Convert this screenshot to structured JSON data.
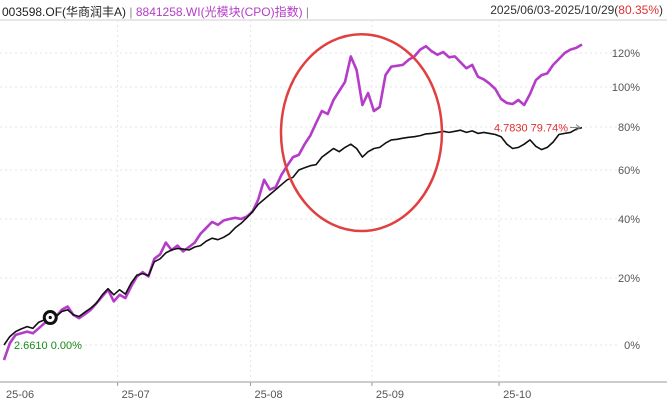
{
  "header": {
    "fund_code_name": "003598.OF(华商润丰A)",
    "separator": "|",
    "index_code_name": "8841258.WI(光模块(CPO)指数)",
    "date_range": "2025/06/03-2025/10/29(",
    "range_return": "80.35%",
    "range_close": ")"
  },
  "annotations": {
    "start_text": "2.6610 0.00%",
    "end_text": "4.7830 79.74%"
  },
  "colors": {
    "fund_line": "#111111",
    "index_line": "#b43cc8",
    "start_label": "#1a8a1a",
    "end_label": "#e03030",
    "circle_mark": "#e04040"
  },
  "chart_data": {
    "type": "line",
    "title": "",
    "xlabel": "",
    "ylabel": "",
    "scale": "log",
    "ylim": [
      -6,
      130
    ],
    "x_ticks": [
      "25-06",
      "25-07",
      "25-08",
      "25-09",
      "25-10"
    ],
    "y_ticks": [
      0,
      20,
      40,
      60,
      80,
      100,
      120
    ],
    "y_tick_labels": [
      "0%",
      "20%",
      "40%",
      "60%",
      "80%",
      "100%",
      "120%"
    ],
    "x": [
      "2025-06-03",
      "2025-06-04",
      "2025-06-05",
      "2025-06-06",
      "2025-06-09",
      "2025-06-10",
      "2025-06-11",
      "2025-06-12",
      "2025-06-13",
      "2025-06-16",
      "2025-06-17",
      "2025-06-18",
      "2025-06-19",
      "2025-06-20",
      "2025-06-23",
      "2025-06-24",
      "2025-06-25",
      "2025-06-26",
      "2025-06-27",
      "2025-06-30",
      "2025-07-01",
      "2025-07-02",
      "2025-07-03",
      "2025-07-04",
      "2025-07-07",
      "2025-07-08",
      "2025-07-09",
      "2025-07-10",
      "2025-07-11",
      "2025-07-14",
      "2025-07-15",
      "2025-07-16",
      "2025-07-17",
      "2025-07-18",
      "2025-07-21",
      "2025-07-22",
      "2025-07-23",
      "2025-07-24",
      "2025-07-25",
      "2025-07-28",
      "2025-07-29",
      "2025-07-30",
      "2025-07-31",
      "2025-08-01",
      "2025-08-04",
      "2025-08-05",
      "2025-08-06",
      "2025-08-07",
      "2025-08-08",
      "2025-08-11",
      "2025-08-12",
      "2025-08-13",
      "2025-08-14",
      "2025-08-15",
      "2025-08-18",
      "2025-08-19",
      "2025-08-20",
      "2025-08-21",
      "2025-08-22",
      "2025-08-25",
      "2025-08-26",
      "2025-08-27",
      "2025-08-28",
      "2025-08-29",
      "2025-09-01",
      "2025-09-02",
      "2025-09-03",
      "2025-09-04",
      "2025-09-05",
      "2025-09-08",
      "2025-09-09",
      "2025-09-10",
      "2025-09-11",
      "2025-09-12",
      "2025-09-15",
      "2025-09-16",
      "2025-09-17",
      "2025-09-18",
      "2025-09-19",
      "2025-09-22",
      "2025-09-23",
      "2025-09-24",
      "2025-09-25",
      "2025-09-26",
      "2025-09-29",
      "2025-09-30",
      "2025-10-09",
      "2025-10-10",
      "2025-10-13",
      "2025-10-14",
      "2025-10-15",
      "2025-10-16",
      "2025-10-17",
      "2025-10-20",
      "2025-10-21",
      "2025-10-22",
      "2025-10-23",
      "2025-10-24",
      "2025-10-27",
      "2025-10-28",
      "2025-10-29"
    ],
    "series": [
      {
        "role": "fund",
        "values": [
          0.0,
          2.5,
          4.0,
          4.8,
          5.5,
          5.0,
          6.8,
          7.5,
          8.2,
          8.5,
          10.0,
          10.5,
          9.0,
          8.5,
          9.8,
          11.0,
          12.5,
          15.0,
          16.8,
          15.0,
          16.5,
          15.2,
          18.5,
          21.0,
          21.5,
          20.8,
          25.5,
          26.5,
          28.5,
          29.5,
          30.0,
          29.8,
          29.5,
          30.5,
          31.0,
          32.5,
          33.5,
          33.0,
          33.8,
          35.0,
          37.0,
          38.5,
          40.5,
          43.0,
          46.0,
          48.0,
          50.0,
          52.0,
          54.0,
          56.0,
          57.0,
          60.0,
          61.0,
          62.0,
          62.5,
          66.0,
          68.0,
          70.0,
          68.5,
          70.5,
          72.0,
          70.0,
          66.0,
          68.5,
          70.0,
          70.5,
          72.5,
          74.0,
          74.3,
          74.8,
          75.2,
          75.5,
          76.0,
          76.8,
          77.0,
          77.5,
          78.0,
          77.5,
          78.0,
          78.5,
          77.5,
          78.2,
          77.0,
          77.5,
          77.0,
          76.5,
          75.5,
          72.0,
          70.0,
          70.5,
          72.0,
          74.0,
          71.0,
          69.5,
          70.5,
          73.0,
          76.5,
          77.0,
          77.5,
          79.0,
          79.74
        ]
      },
      {
        "role": "index",
        "values": [
          -4.5,
          0.5,
          3.0,
          3.5,
          4.0,
          3.5,
          5.0,
          6.5,
          7.5,
          8.5,
          10.5,
          11.5,
          9.0,
          8.0,
          9.2,
          10.5,
          12.5,
          14.5,
          16.5,
          13.0,
          15.0,
          14.0,
          17.5,
          20.5,
          22.0,
          20.5,
          26.5,
          28.0,
          32.0,
          29.5,
          31.0,
          29.0,
          30.5,
          32.0,
          35.0,
          37.0,
          39.0,
          38.0,
          39.5,
          40.0,
          40.5,
          40.0,
          41.0,
          43.0,
          48.0,
          56.0,
          52.0,
          53.0,
          58.0,
          62.0,
          66.0,
          67.0,
          72.0,
          76.0,
          82.0,
          88.0,
          86.5,
          93.5,
          98.0,
          103.0,
          118.0,
          110.0,
          91.0,
          97.0,
          88.0,
          90.0,
          107.0,
          112.0,
          112.5,
          113.0,
          116.0,
          118.0,
          122.0,
          124.0,
          121.0,
          119.0,
          120.5,
          117.5,
          118.0,
          114.5,
          111.0,
          113.0,
          106.0,
          104.5,
          102.0,
          99.0,
          94.0,
          92.0,
          91.5,
          93.5,
          91.0,
          96.5,
          104.0,
          107.0,
          108.0,
          113.0,
          116.5,
          120.0,
          122.0,
          123.0,
          125.0
        ]
      }
    ]
  }
}
